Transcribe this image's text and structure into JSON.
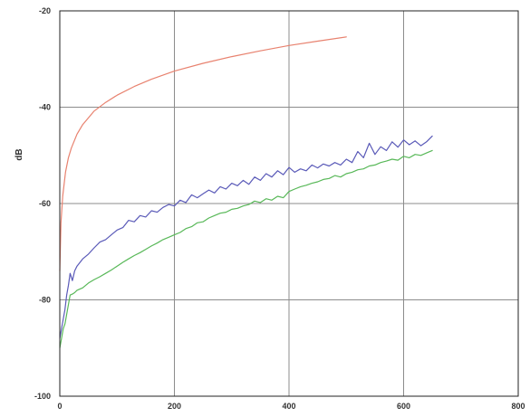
{
  "chart_data": {
    "type": "line",
    "title": "",
    "xlabel": "",
    "ylabel": "dB",
    "xlim": [
      0,
      800
    ],
    "ylim": [
      -100,
      -20
    ],
    "x_ticks": [
      "0",
      "200",
      "400",
      "600",
      "800"
    ],
    "y_ticks": [
      "-20",
      "-40",
      "-60",
      "-80",
      "-100"
    ],
    "x_tick_values": [
      0,
      200,
      400,
      600,
      800
    ],
    "y_tick_values": [
      -20,
      -40,
      -60,
      -80,
      -100
    ],
    "grid": true,
    "legend": "none",
    "series": [
      {
        "color": "#e8826f",
        "x": [
          0,
          2,
          5,
          10,
          15,
          20,
          30,
          40,
          60,
          80,
          100,
          130,
          160,
          200,
          250,
          300,
          350,
          400,
          450,
          500
        ],
        "y": [
          -74,
          -64,
          -58.5,
          -53.5,
          -50.5,
          -48.5,
          -45.6,
          -43.6,
          -40.8,
          -39,
          -37.5,
          -35.7,
          -34.2,
          -32.5,
          -30.9,
          -29.5,
          -28.3,
          -27.2,
          -26.3,
          -25.4
        ]
      },
      {
        "color": "#5a5ab8",
        "x": [
          0,
          3,
          6,
          9,
          12,
          15,
          18,
          22,
          26,
          30,
          40,
          50,
          60,
          70,
          80,
          90,
          100,
          110,
          120,
          130,
          140,
          150,
          160,
          170,
          180,
          190,
          200,
          210,
          220,
          230,
          240,
          250,
          260,
          270,
          280,
          290,
          300,
          310,
          320,
          330,
          340,
          350,
          360,
          370,
          380,
          390,
          400,
          410,
          420,
          430,
          440,
          450,
          460,
          470,
          480,
          490,
          500,
          510,
          520,
          530,
          540,
          550,
          560,
          570,
          580,
          590,
          600,
          610,
          620,
          630,
          640,
          650
        ],
        "y": [
          -88,
          -86,
          -84,
          -82,
          -79,
          -77,
          -74.5,
          -76,
          -74,
          -73,
          -71.5,
          -70.5,
          -69.2,
          -68,
          -67.5,
          -66.5,
          -65.5,
          -65,
          -63.5,
          -63.8,
          -62.5,
          -62.8,
          -61.5,
          -61.8,
          -60.8,
          -60.2,
          -60.5,
          -59.3,
          -59.8,
          -58.2,
          -58.8,
          -58,
          -57.2,
          -57.8,
          -56.5,
          -57,
          -55.8,
          -56.3,
          -55.2,
          -56,
          -54.5,
          -55.2,
          -53.8,
          -54.5,
          -53.2,
          -54,
          -52.5,
          -53.5,
          -52.8,
          -53.2,
          -52,
          -52.6,
          -51.8,
          -52.2,
          -51.5,
          -52,
          -50.8,
          -51.5,
          -49.2,
          -50.5,
          -47.5,
          -49.8,
          -48.2,
          -49,
          -47.2,
          -48.3,
          -46.8,
          -47.8,
          -47,
          -48,
          -47.2,
          -46
        ]
      },
      {
        "color": "#58b858",
        "x": [
          0,
          3,
          6,
          9,
          12,
          15,
          18,
          22,
          26,
          30,
          40,
          50,
          60,
          70,
          80,
          90,
          100,
          110,
          120,
          130,
          140,
          150,
          160,
          170,
          180,
          190,
          200,
          210,
          220,
          230,
          240,
          250,
          260,
          270,
          280,
          290,
          300,
          310,
          320,
          330,
          340,
          350,
          360,
          370,
          380,
          390,
          400,
          410,
          420,
          430,
          440,
          450,
          460,
          470,
          480,
          490,
          500,
          510,
          520,
          530,
          540,
          550,
          560,
          570,
          580,
          590,
          600,
          610,
          620,
          630,
          640,
          650
        ],
        "y": [
          -90,
          -88,
          -86,
          -85,
          -83,
          -81,
          -79,
          -78.8,
          -78.5,
          -78,
          -77.5,
          -76.5,
          -75.8,
          -75.2,
          -74.5,
          -73.8,
          -73,
          -72.2,
          -71.5,
          -70.8,
          -70.2,
          -69.5,
          -68.8,
          -68.2,
          -67.5,
          -67,
          -66.5,
          -66,
          -65.2,
          -64.8,
          -64,
          -63.8,
          -63,
          -62.5,
          -62,
          -61.8,
          -61.2,
          -61,
          -60.5,
          -60.2,
          -59.5,
          -59.8,
          -59,
          -59.3,
          -58.5,
          -58.8,
          -57.5,
          -57,
          -56.5,
          -56.2,
          -55.8,
          -55.5,
          -55,
          -54.8,
          -54.2,
          -54.5,
          -53.8,
          -53.5,
          -53,
          -52.8,
          -52.2,
          -52,
          -51.5,
          -51.2,
          -50.8,
          -51,
          -50.2,
          -50.5,
          -49.8,
          -50,
          -49.5,
          -49
        ]
      }
    ]
  }
}
